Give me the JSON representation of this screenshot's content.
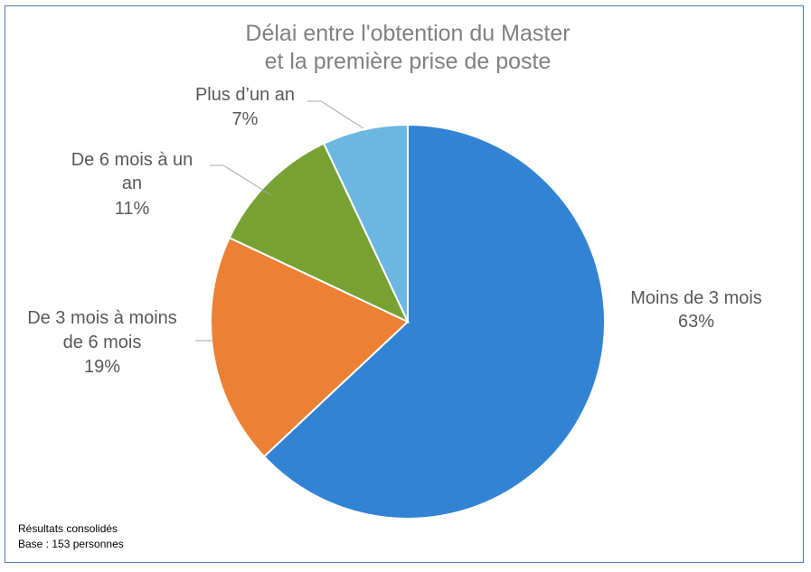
{
  "chart_data": {
    "type": "pie",
    "title_lines": [
      "Délai entre l'obtention du Master",
      "et la première prise de poste"
    ],
    "slices": [
      {
        "label_lines": [
          "Moins de 3 mois"
        ],
        "percent_label": "63%",
        "value": 63,
        "color": "#3383d4"
      },
      {
        "label_lines": [
          "De 3 mois à moins",
          "de 6 mois"
        ],
        "percent_label": "19%",
        "value": 19,
        "color": "#ec8034"
      },
      {
        "label_lines": [
          "De 6 mois à un",
          "an"
        ],
        "percent_label": "11%",
        "value": 11,
        "color": "#77a233"
      },
      {
        "label_lines": [
          "Plus d’un an"
        ],
        "percent_label": "7%",
        "value": 7,
        "color": "#6cb7e2"
      }
    ],
    "start_angle_deg": 0,
    "direction": "clockwise",
    "legend": "none"
  },
  "footnote": {
    "line1": "Résultats consolidés",
    "line2": "Base : 153 personnes"
  }
}
